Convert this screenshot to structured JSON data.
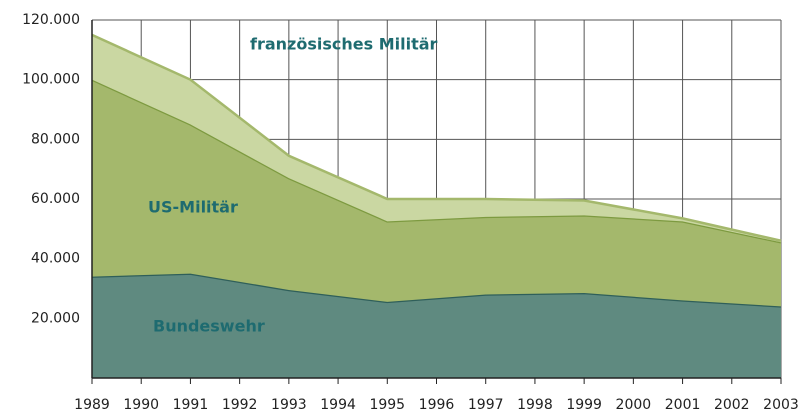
{
  "chart_data": {
    "type": "stacked-area",
    "x": [
      1989,
      1991,
      1993,
      1995,
      1997,
      1999,
      2001,
      2003
    ],
    "series": [
      {
        "name": "Bundeswehr",
        "color": "#5f8a80",
        "line_color": "#2f5f5a",
        "values": [
          34000,
          35000,
          29500,
          25500,
          28000,
          28500,
          26000,
          24000
        ]
      },
      {
        "name": "US-Militär",
        "color": "#a4b86c",
        "line_color": "#7d9a40",
        "values": [
          66000,
          50000,
          37500,
          27000,
          26000,
          26000,
          26500,
          21500
        ]
      },
      {
        "name": "französisches Militär",
        "color": "#cad7a2",
        "line_color": "#a4b86c",
        "values": [
          15000,
          15000,
          7500,
          7500,
          6000,
          5000,
          1000,
          500
        ]
      }
    ],
    "xlim": [
      1989,
      2003
    ],
    "xticks": [
      1989,
      1990,
      1991,
      1992,
      1993,
      1994,
      1995,
      1996,
      1997,
      1998,
      1999,
      2000,
      2001,
      2002,
      2003
    ],
    "ylim": [
      0,
      120000
    ],
    "yticks": [
      {
        "value": 20000,
        "label": "20.000"
      },
      {
        "value": 40000,
        "label": "40.000"
      },
      {
        "value": 60000,
        "label": "60.000"
      },
      {
        "value": 80000,
        "label": "80.000"
      },
      {
        "value": 100000,
        "label": "100.000"
      },
      {
        "value": 120000,
        "label": "120.000"
      }
    ],
    "grid": true
  }
}
